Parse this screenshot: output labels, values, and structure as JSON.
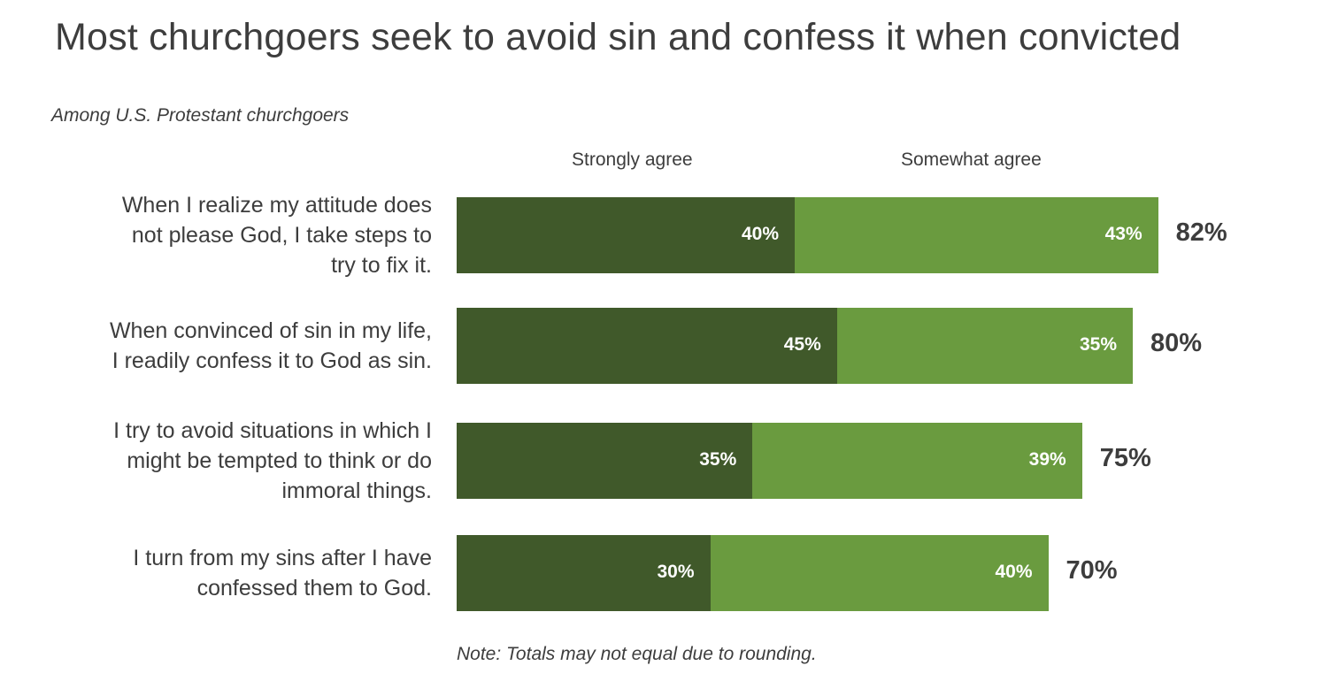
{
  "chart_data": {
    "type": "bar",
    "orientation": "horizontal",
    "stacked": true,
    "title": "Most churchgoers seek to avoid sin and confess it when convicted",
    "subtitle": "Among U.S. Protestant churchgoers",
    "legend_placement": "top",
    "categories": [
      "When I realize my attitude does not please God, I take steps to try to fix it.",
      "When convinced of sin in my life, I readily confess it to God as sin.",
      "I try to avoid situations in which I might be tempted to think or do immoral things.",
      "I turn from my sins after I have confessed them to God."
    ],
    "series": [
      {
        "name": "Strongly agree",
        "color": "#40592a",
        "values": [
          40,
          45,
          35,
          30
        ],
        "labels": [
          "40%",
          "45%",
          "35%",
          "30%"
        ]
      },
      {
        "name": "Somewhat agree",
        "color": "#6a9b3f",
        "values": [
          43,
          35,
          39,
          40
        ],
        "labels": [
          "43%",
          "35%",
          "39%",
          "40%"
        ]
      }
    ],
    "totals": [
      82,
      80,
      75,
      70
    ],
    "total_labels": [
      "82%",
      "80%",
      "75%",
      "70%"
    ],
    "xlim": [
      0,
      100
    ],
    "grid": false,
    "note": "Note: Totals may not equal due to rounding."
  }
}
